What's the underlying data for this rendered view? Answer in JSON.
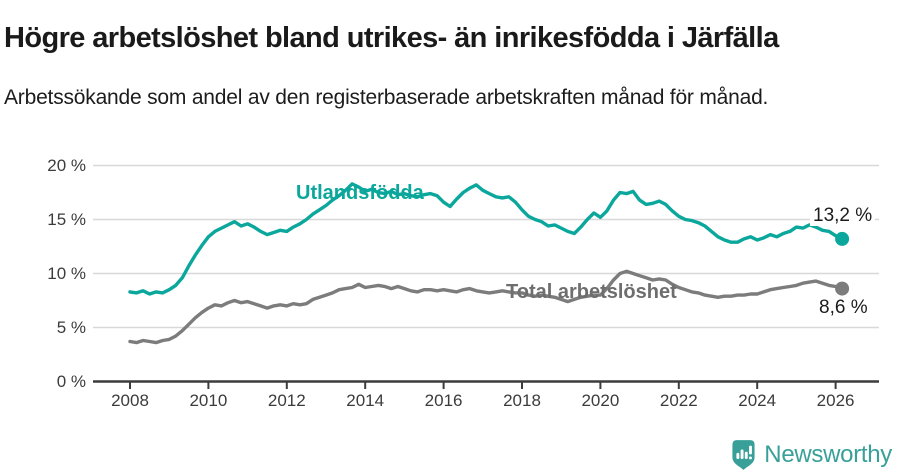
{
  "header": {
    "title": "Högre arbetslöshet bland utrikes- än inrikesfödda i Järfälla",
    "subtitle": "Arbetssökande som andel av den registerbaserade arbetskraften månad för månad."
  },
  "colors": {
    "foreign_born_line": "#0ba79c",
    "total_line": "#7c7c7c",
    "total_label": "#6e6e6e",
    "gridline": "#d8d8d8",
    "axis": "#3c3c3c",
    "brand_teal": "#38a099"
  },
  "chart_data": {
    "type": "line",
    "title": "Högre arbetslöshet bland utrikes- än inrikesfödda i Järfälla",
    "subtitle": "Arbetssökande som andel av den registerbaserade arbetskraften månad för månad.",
    "unit": "%",
    "ylim": [
      0,
      20
    ],
    "grid": "horizontal",
    "legend_position": "inline-labels",
    "y_ticks": [
      "20 %",
      "15 %",
      "10 %",
      "5 %",
      "0 %"
    ],
    "y_tick_values": [
      20,
      15,
      10,
      5,
      0
    ],
    "x_ticks": [
      "2008",
      "2010",
      "2012",
      "2014",
      "2016",
      "2018",
      "2020",
      "2022",
      "2024",
      "2026"
    ],
    "x_start": 2008,
    "x_step_years": 0.166667,
    "series": [
      {
        "name": "Utlandsfödda",
        "color": "#0ba79c",
        "label_color": "#0ba79c",
        "end_label": "13,2 %",
        "end_value": 13.2,
        "values": [
          8.3,
          8.2,
          8.4,
          8.1,
          8.3,
          8.2,
          8.5,
          8.9,
          9.6,
          10.7,
          11.7,
          12.6,
          13.4,
          13.9,
          14.2,
          14.5,
          14.8,
          14.4,
          14.6,
          14.3,
          13.9,
          13.6,
          13.8,
          14.0,
          13.9,
          14.3,
          14.6,
          15.0,
          15.5,
          15.9,
          16.3,
          16.8,
          17.2,
          17.7,
          18.3,
          18.0,
          17.6,
          17.8,
          17.5,
          17.4,
          17.6,
          17.3,
          17.4,
          17.2,
          17.1,
          17.3,
          17.4,
          17.2,
          16.6,
          16.2,
          16.9,
          17.5,
          17.9,
          18.2,
          17.7,
          17.4,
          17.1,
          17.0,
          17.1,
          16.6,
          15.9,
          15.3,
          15.0,
          14.8,
          14.4,
          14.5,
          14.2,
          13.9,
          13.7,
          14.3,
          15.0,
          15.6,
          15.2,
          15.8,
          16.8,
          17.5,
          17.4,
          17.6,
          16.8,
          16.4,
          16.5,
          16.7,
          16.4,
          15.8,
          15.3,
          15.0,
          14.9,
          14.7,
          14.4,
          13.9,
          13.4,
          13.1,
          12.9,
          12.9,
          13.2,
          13.4,
          13.1,
          13.3,
          13.6,
          13.4,
          13.7,
          13.9,
          14.3,
          14.2,
          14.5,
          14.3,
          14.0,
          13.9,
          13.5,
          13.2
        ]
      },
      {
        "name": "Total arbetslöshet",
        "color": "#7c7c7c",
        "label_color": "#6e6e6e",
        "end_label": "8,6 %",
        "end_value": 8.6,
        "values": [
          3.7,
          3.6,
          3.8,
          3.7,
          3.6,
          3.8,
          3.9,
          4.2,
          4.7,
          5.3,
          5.9,
          6.4,
          6.8,
          7.1,
          7.0,
          7.3,
          7.5,
          7.3,
          7.4,
          7.2,
          7.0,
          6.8,
          7.0,
          7.1,
          7.0,
          7.2,
          7.1,
          7.2,
          7.6,
          7.8,
          8.0,
          8.2,
          8.5,
          8.6,
          8.7,
          9.0,
          8.7,
          8.8,
          8.9,
          8.8,
          8.6,
          8.8,
          8.6,
          8.4,
          8.3,
          8.5,
          8.5,
          8.4,
          8.5,
          8.4,
          8.3,
          8.5,
          8.6,
          8.4,
          8.3,
          8.2,
          8.3,
          8.4,
          8.3,
          8.2,
          8.2,
          8.0,
          7.9,
          8.0,
          7.9,
          7.8,
          7.6,
          7.4,
          7.6,
          7.8,
          7.9,
          8.0,
          8.0,
          8.6,
          9.4,
          10.0,
          10.2,
          10.0,
          9.8,
          9.6,
          9.4,
          9.5,
          9.4,
          9.0,
          8.7,
          8.5,
          8.3,
          8.2,
          8.0,
          7.9,
          7.8,
          7.9,
          7.9,
          8.0,
          8.0,
          8.1,
          8.1,
          8.3,
          8.5,
          8.6,
          8.7,
          8.8,
          8.9,
          9.1,
          9.2,
          9.3,
          9.1,
          8.9,
          8.8,
          8.6
        ]
      }
    ]
  },
  "footer": {
    "brand": "Newsworthy"
  }
}
